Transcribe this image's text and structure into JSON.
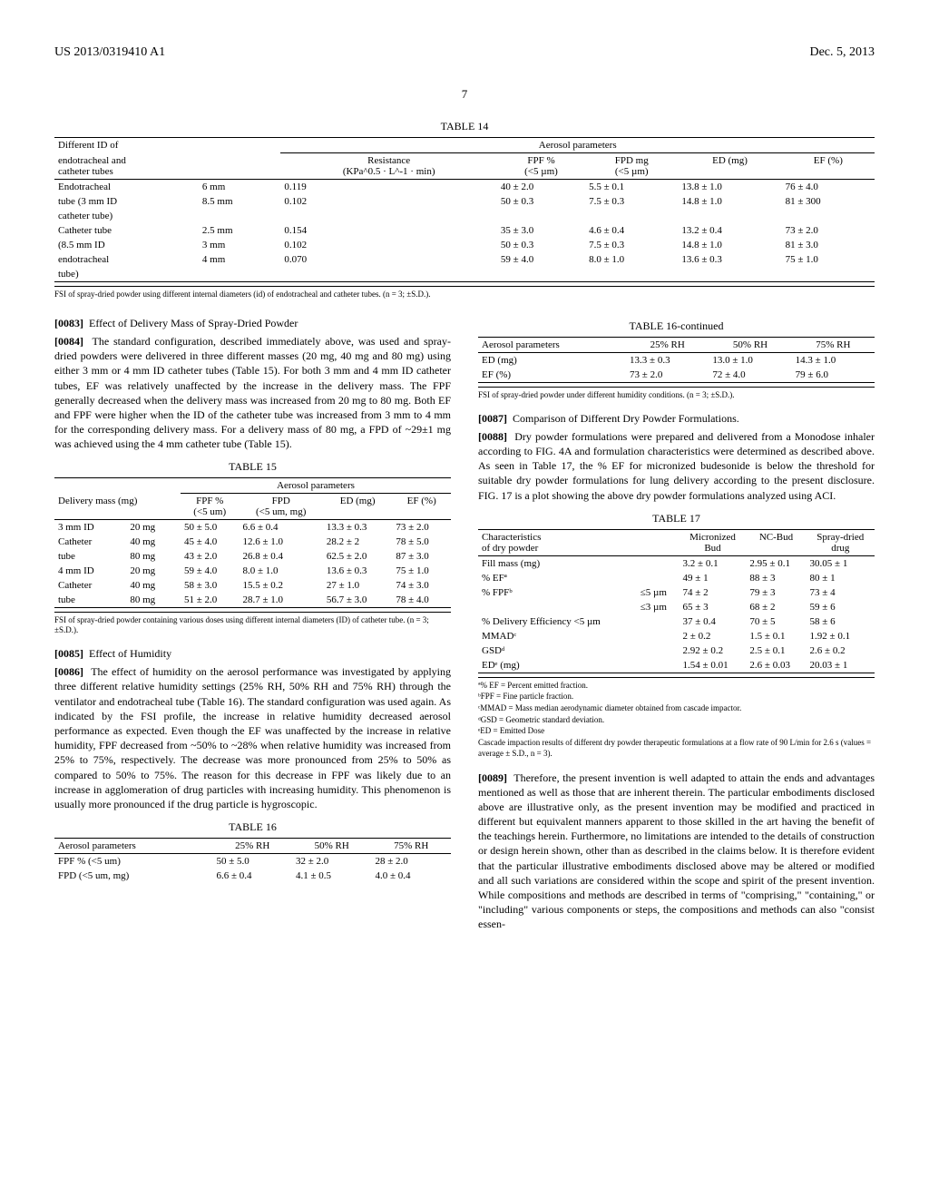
{
  "header": {
    "patent_no": "US 2013/0319410 A1",
    "date": "Dec. 5, 2013"
  },
  "page_number": "7",
  "table14": {
    "caption": "TABLE 14",
    "group_headers": [
      "Different ID of",
      "Aerosol parameters"
    ],
    "subheaders": {
      "col1a": "endotracheal and",
      "col1b": "catheter tubes",
      "col3a": "Resistance",
      "col3b": "(KPa^0.5 · L^-1 · min)",
      "col4a": "FPF %",
      "col4b": "(<5 µm)",
      "col5a": "FPD mg",
      "col5b": "(<5 µm)",
      "col6": "ED (mg)",
      "col7": "EF (%)"
    },
    "rows": [
      [
        "Endotracheal",
        "6 mm",
        "0.119",
        "40 ± 2.0",
        "5.5 ± 0.1",
        "13.8 ± 1.0",
        "76 ± 4.0"
      ],
      [
        "tube (3 mm ID",
        "8.5 mm",
        "0.102",
        "50 ± 0.3",
        "7.5 ± 0.3",
        "14.8 ± 1.0",
        "81 ± 300"
      ],
      [
        "catheter tube)",
        "",
        "",
        "",
        "",
        "",
        ""
      ],
      [
        "Catheter tube",
        "2.5 mm",
        "0.154",
        "35 ± 3.0",
        "4.6 ± 0.4",
        "13.2 ± 0.4",
        "73 ± 2.0"
      ],
      [
        "(8.5 mm ID",
        "3 mm",
        "0.102",
        "50 ± 0.3",
        "7.5 ± 0.3",
        "14.8 ± 1.0",
        "81 ± 3.0"
      ],
      [
        "endotracheal",
        "4 mm",
        "0.070",
        "59 ± 4.0",
        "8.0 ± 1.0",
        "13.6 ± 0.3",
        "75 ± 1.0"
      ],
      [
        "tube)",
        "",
        "",
        "",
        "",
        "",
        ""
      ]
    ],
    "note": "FSI of spray-dried powder using different internal diameters (id) of endotracheal and catheter tubes. (n = 3; ±S.D.)."
  },
  "para83_num": "[0083]",
  "para83_text": "Effect of Delivery Mass of Spray-Dried Powder",
  "para84_num": "[0084]",
  "para84_text": "The standard configuration, described immediately above, was used and spray-dried powders were delivered in three different masses (20 mg, 40 mg and 80 mg) using either 3 mm or 4 mm ID catheter tubes (Table 15). For both 3 mm and 4 mm ID catheter tubes, EF was relatively unaffected by the increase in the delivery mass. The FPF generally decreased when the delivery mass was increased from 20 mg to 80 mg. Both EF and FPF were higher when the ID of the catheter tube was increased from 3 mm to 4 mm for the corresponding delivery mass. For a delivery mass of 80 mg, a FPD of ~29±1 mg was achieved using the 4 mm catheter tube (Table 15).",
  "table15": {
    "caption": "TABLE 15",
    "group_header": "Aerosol parameters",
    "subheaders": {
      "c1": "Delivery mass (mg)",
      "c3a": "FPF %",
      "c3b": "(<5 um)",
      "c4a": "FPD",
      "c4b": "(<5 um, mg)",
      "c5": "ED (mg)",
      "c6": "EF (%)"
    },
    "rows": [
      [
        "3 mm ID",
        "20 mg",
        "50 ± 5.0",
        "6.6 ± 0.4",
        "13.3 ± 0.3",
        "73 ± 2.0"
      ],
      [
        "Catheter",
        "40 mg",
        "45 ± 4.0",
        "12.6 ± 1.0",
        "28.2 ± 2",
        "78 ± 5.0"
      ],
      [
        "tube",
        "80 mg",
        "43 ± 2.0",
        "26.8 ± 0.4",
        "62.5 ± 2.0",
        "87 ± 3.0"
      ],
      [
        "4 mm ID",
        "20 mg",
        "59 ± 4.0",
        "8.0 ± 1.0",
        "13.6 ± 0.3",
        "75 ± 1.0"
      ],
      [
        "Catheter",
        "40 mg",
        "58 ± 3.0",
        "15.5 ± 0.2",
        "27 ± 1.0",
        "74 ± 3.0"
      ],
      [
        "tube",
        "80 mg",
        "51 ± 2.0",
        "28.7 ± 1.0",
        "56.7 ± 3.0",
        "78 ± 4.0"
      ]
    ],
    "note": "FSI of spray-dried powder containing various doses using different internal diameters (ID) of catheter tube. (n = 3; ±S.D.)."
  },
  "para85_num": "[0085]",
  "para85_text": "Effect of Humidity",
  "para86_num": "[0086]",
  "para86_text": "The effect of humidity on the aerosol performance was investigated by applying three different relative humidity settings (25% RH, 50% RH and 75% RH) through the ventilator and endotracheal tube (Table 16). The standard configuration was used again. As indicated by the FSI profile, the increase in relative humidity decreased aerosol performance as expected. Even though the EF was unaffected by the increase in relative humidity, FPF decreased from ~50% to ~28% when relative humidity was increased from 25% to 75%, respectively. The decrease was more pronounced from 25% to 50% as compared to 50% to 75%. The reason for this decrease in FPF was likely due to an increase in agglomeration of drug particles with increasing humidity. This phenomenon is usually more pronounced if the drug particle is hygroscopic.",
  "table16": {
    "caption": "TABLE 16",
    "headers": [
      "Aerosol parameters",
      "25% RH",
      "50% RH",
      "75% RH"
    ],
    "rows": [
      [
        "FPF % (<5 um)",
        "50 ± 5.0",
        "32 ± 2.0",
        "28 ± 2.0"
      ],
      [
        "FPD (<5 um, mg)",
        "6.6 ± 0.4",
        "4.1 ± 0.5",
        "4.0 ± 0.4"
      ]
    ]
  },
  "table16c": {
    "caption": "TABLE 16-continued",
    "headers": [
      "Aerosol parameters",
      "25% RH",
      "50% RH",
      "75% RH"
    ],
    "rows": [
      [
        "ED (mg)",
        "13.3 ± 0.3",
        "13.0 ± 1.0",
        "14.3 ± 1.0"
      ],
      [
        "EF (%)",
        "73 ± 2.0",
        "72 ± 4.0",
        "79 ± 6.0"
      ]
    ],
    "note": "FSI of spray-dried powder under different humidity conditions. (n = 3; ±S.D.)."
  },
  "para87_num": "[0087]",
  "para87_text": "Comparison of Different Dry Powder Formulations.",
  "para88_num": "[0088]",
  "para88_text": "Dry powder formulations were prepared and delivered from a Monodose inhaler according to FIG. 4A and formulation characteristics were determined as described above. As seen in Table 17, the % EF for micronized budesonide is below the threshold for suitable dry powder formulations for lung delivery according to the present disclosure. FIG. 17 is a plot showing the above dry powder formulations analyzed using ACI.",
  "table17": {
    "caption": "TABLE 17",
    "headers": {
      "c1a": "Characteristics",
      "c1b": "of dry powder",
      "c3a": "Micronized",
      "c3b": "Bud",
      "c4": "NC-Bud",
      "c5a": "Spray-dried",
      "c5b": "drug"
    },
    "rows": [
      [
        "Fill mass (mg)",
        "",
        "3.2 ± 0.1",
        "2.95 ± 0.1",
        "30.05 ± 1"
      ],
      [
        "% EFª",
        "",
        "49 ± 1",
        "88 ± 3",
        "80 ± 1"
      ],
      [
        "% FPFᵇ",
        "≤5 µm",
        "74 ± 2",
        "79 ± 3",
        "73 ± 4"
      ],
      [
        "",
        "≤3 µm",
        "65 ± 3",
        "68 ± 2",
        "59 ± 6"
      ],
      [
        "% Delivery Efficiency <5 µm",
        "",
        "37 ± 0.4",
        "70 ± 5",
        "58 ± 6"
      ],
      [
        "MMADᶜ",
        "",
        "2 ± 0.2",
        "1.5 ± 0.1",
        "1.92 ± 0.1"
      ],
      [
        "GSDᵈ",
        "",
        "2.92 ± 0.2",
        "2.5 ± 0.1",
        "2.6 ± 0.2"
      ],
      [
        "EDᵉ (mg)",
        "",
        "1.54 ± 0.01",
        "2.6 ± 0.03",
        "20.03 ± 1"
      ]
    ],
    "footnotes": [
      "ª% EF = Percent emitted fraction.",
      "ᵇFPF = Fine particle fraction.",
      "ᶜMMAD = Mass median aerodynamic diameter obtained from cascade impactor.",
      "ᵈGSD = Geometric standard deviation.",
      "ᵉED = Emitted Dose",
      "Cascade impaction results of different dry powder therapeutic formulations at a flow rate of 90 L/min for 2.6 s (values = average ± S.D., n = 3)."
    ]
  },
  "para89_num": "[0089]",
  "para89_text": "Therefore, the present invention is well adapted to attain the ends and advantages mentioned as well as those that are inherent therein. The particular embodiments disclosed above are illustrative only, as the present invention may be modified and practiced in different but equivalent manners apparent to those skilled in the art having the benefit of the teachings herein. Furthermore, no limitations are intended to the details of construction or design herein shown, other than as described in the claims below. It is therefore evident that the particular illustrative embodiments disclosed above may be altered or modified and all such variations are considered within the scope and spirit of the present invention. While compositions and methods are described in terms of \"comprising,\" \"containing,\" or \"including\" various components or steps, the compositions and methods can also \"consist essen-"
}
